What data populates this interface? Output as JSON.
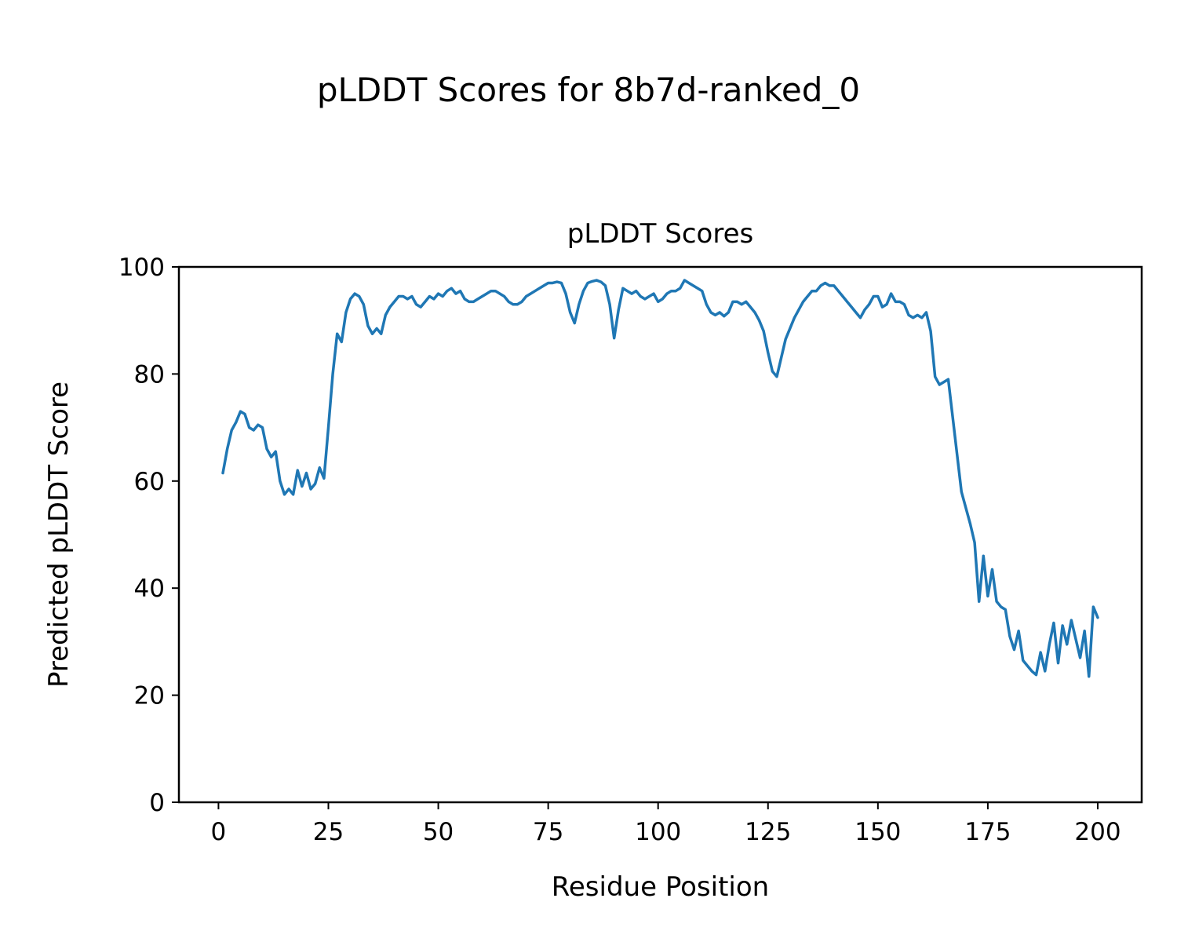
{
  "figure": {
    "suptitle": "pLDDT Scores for 8b7d-ranked_0",
    "background_color": "#ffffff"
  },
  "chart_data": {
    "type": "line",
    "title": "pLDDT Scores",
    "xlabel": "Residue Position",
    "ylabel": "Predicted pLDDT Score",
    "xlim": [
      -9,
      210
    ],
    "ylim": [
      0,
      100
    ],
    "xticks": [
      0,
      25,
      50,
      75,
      100,
      125,
      150,
      175,
      200
    ],
    "yticks": [
      0,
      20,
      40,
      60,
      80,
      100
    ],
    "grid": false,
    "legend": "none",
    "line_color": "#1f77b4",
    "line_width": 3.5,
    "series": [
      {
        "name": "pLDDT",
        "x_start": 1,
        "x_step": 1,
        "y": [
          61.5,
          66,
          69.5,
          71,
          73,
          72.5,
          70,
          69.5,
          70.5,
          70,
          66,
          64.5,
          65.5,
          60,
          57.5,
          58.5,
          57.5,
          62,
          59,
          61.5,
          58.5,
          59.5,
          62.5,
          60.5,
          70,
          80,
          87.5,
          86,
          91.5,
          94,
          95,
          94.5,
          93,
          89,
          87.5,
          88.5,
          87.5,
          91,
          92.5,
          93.5,
          94.5,
          94.5,
          94,
          94.5,
          93,
          92.5,
          93.5,
          94.5,
          94,
          95,
          94.5,
          95.5,
          96,
          95,
          95.5,
          94,
          93.5,
          93.5,
          94,
          94.5,
          95,
          95.5,
          95.5,
          95,
          94.5,
          93.5,
          93,
          93,
          93.5,
          94.5,
          95,
          95.5,
          96,
          96.5,
          97,
          97,
          97.2,
          97,
          95,
          91.5,
          89.5,
          93,
          95.5,
          97,
          97.3,
          97.5,
          97.2,
          96.5,
          93,
          86.7,
          92,
          96,
          95.5,
          95,
          95.5,
          94.5,
          94,
          94.5,
          95,
          93.5,
          94,
          95,
          95.5,
          95.5,
          96,
          97.5,
          97,
          96.5,
          96,
          95.5,
          93,
          91.5,
          91,
          91.5,
          90.8,
          91.5,
          93.5,
          93.5,
          93,
          93.5,
          92.5,
          91.5,
          90,
          88,
          84,
          80.5,
          79.5,
          83,
          86.5,
          88.5,
          90.5,
          92,
          93.5,
          94.5,
          95.5,
          95.5,
          96.5,
          97,
          96.5,
          96.5,
          95.5,
          94.5,
          93.5,
          92.5,
          91.5,
          90.5,
          92,
          93,
          94.5,
          94.5,
          92.5,
          93,
          95,
          93.5,
          93.5,
          93,
          91,
          90.5,
          91,
          90.5,
          91.5,
          88,
          79.5,
          78,
          78.5,
          79,
          72,
          65,
          58,
          55,
          52,
          48.5,
          37.5,
          46,
          38.5,
          43.5,
          37.5,
          36.5,
          36,
          31,
          28.5,
          32,
          26.5,
          25.5,
          24.5,
          23.8,
          28,
          24.5,
          29.5,
          33.5,
          26,
          33,
          29.5,
          34,
          30.5,
          27,
          32,
          23.5,
          36.5,
          34.5
        ]
      }
    ]
  }
}
